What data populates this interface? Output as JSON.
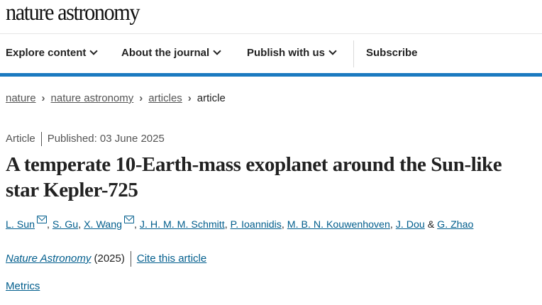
{
  "logo": "nature astronomy",
  "nav": {
    "items": [
      "Explore content",
      "About the journal",
      "Publish with us"
    ],
    "subscribe": "Subscribe"
  },
  "breadcrumb": [
    "nature",
    "nature astronomy",
    "articles",
    "article"
  ],
  "article": {
    "type": "Article",
    "published": "Published: 03 June 2025",
    "title": "A temperate 10-Earth-mass exoplanet around the Sun-like star Kepler-725",
    "authors": [
      "L. Sun",
      "S. Gu",
      "X. Wang",
      "J. H. M. M. Schmitt",
      "P. Ioannidis",
      "M. B. N. Kouwenhoven",
      "J. Dou",
      "G. Zhao"
    ],
    "ampersand": "&",
    "journal": "Nature Astronomy",
    "year": "(2025)",
    "cite": "Cite this article",
    "metrics": "Metrics"
  },
  "colors": {
    "accent": "#1b7ac0",
    "link": "#025e8d"
  }
}
